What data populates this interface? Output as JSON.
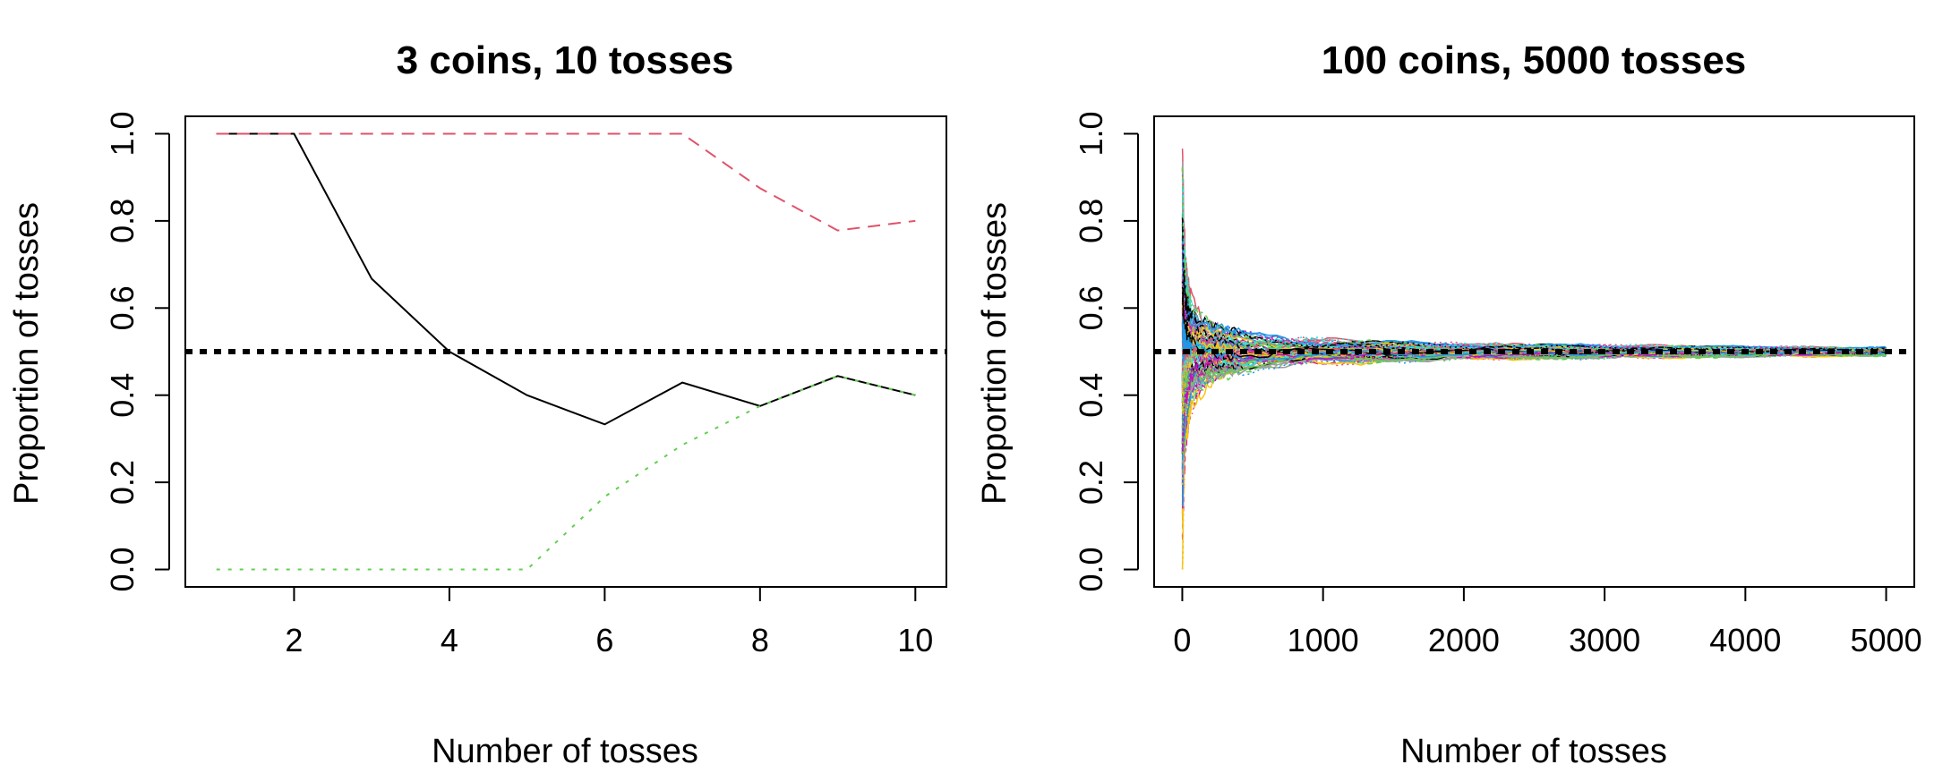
{
  "chart_data": [
    {
      "type": "line",
      "title": "3 coins, 10 tosses",
      "xlabel": "Number of tosses",
      "ylabel": "Proportion of tosses",
      "xlim": [
        0.6,
        10.4
      ],
      "ylim": [
        -0.04,
        1.04
      ],
      "xticks": [
        2,
        4,
        6,
        8,
        10
      ],
      "yticks": [
        0.0,
        0.2,
        0.4,
        0.6,
        0.8,
        1.0
      ],
      "xtick_labels": [
        "2",
        "4",
        "6",
        "8",
        "10"
      ],
      "ytick_labels": [
        "0.0",
        "0.2",
        "0.4",
        "0.6",
        "0.8",
        "1.0"
      ],
      "reference_line": {
        "y": 0.5,
        "style": "dotted",
        "color": "#000000"
      },
      "x": [
        1,
        2,
        3,
        4,
        5,
        6,
        7,
        8,
        9,
        10
      ],
      "series": [
        {
          "values": [
            1.0,
            1.0,
            0.667,
            0.5,
            0.4,
            0.333,
            0.429,
            0.375,
            0.444,
            0.4
          ],
          "color": "#000000",
          "style": "solid"
        },
        {
          "values": [
            1.0,
            1.0,
            1.0,
            1.0,
            1.0,
            1.0,
            1.0,
            0.875,
            0.778,
            0.8
          ],
          "color": "#DF536B",
          "style": "dashed"
        },
        {
          "values": [
            0.0,
            0.0,
            0.0,
            0.0,
            0.0,
            0.167,
            0.286,
            0.375,
            0.444,
            0.4
          ],
          "color": "#61D04F",
          "style": "dotted"
        }
      ]
    },
    {
      "type": "line",
      "title": "100 coins, 5000 tosses",
      "xlabel": "Number of tosses",
      "ylabel": "Proportion of tosses",
      "xlim": [
        -200,
        5200
      ],
      "ylim": [
        -0.04,
        1.04
      ],
      "xticks": [
        0,
        1000,
        2000,
        3000,
        4000,
        5000
      ],
      "yticks": [
        0.0,
        0.2,
        0.4,
        0.6,
        0.8,
        1.0
      ],
      "xtick_labels": [
        "0",
        "1000",
        "2000",
        "3000",
        "4000",
        "5000"
      ],
      "ytick_labels": [
        "0.0",
        "0.2",
        "0.4",
        "0.6",
        "0.8",
        "1.0"
      ],
      "reference_line": {
        "y": 0.5,
        "style": "dotted",
        "color": "#000000"
      },
      "n_series": 100,
      "n_tosses": 5000,
      "x_range": [
        1,
        5000
      ],
      "series_palette": [
        "#000000",
        "#DF536B",
        "#61D04F",
        "#2297E6",
        "#28E2E5",
        "#CD0BBC",
        "#F5C710",
        "#9E9E9E"
      ],
      "envelope": {
        "x": [
          1,
          10,
          25,
          50,
          100,
          200,
          300,
          500,
          750,
          1000,
          1500,
          2000,
          3000,
          4000,
          5000
        ],
        "low": [
          0.0,
          0.2,
          0.3,
          0.36,
          0.4,
          0.43,
          0.44,
          0.455,
          0.465,
          0.47,
          0.475,
          0.48,
          0.484,
          0.487,
          0.49
        ],
        "high": [
          1.0,
          0.8,
          0.72,
          0.65,
          0.62,
          0.58,
          0.56,
          0.545,
          0.535,
          0.53,
          0.525,
          0.52,
          0.516,
          0.513,
          0.51
        ]
      }
    }
  ]
}
